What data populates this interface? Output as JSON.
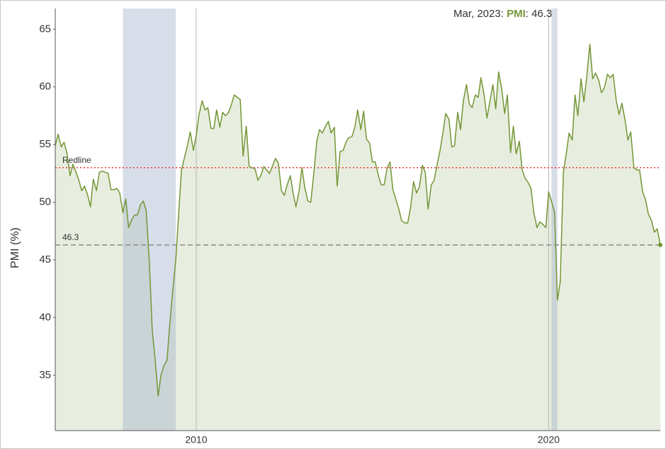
{
  "chart_data": {
    "type": "area-line",
    "axis_label_y": "PMI (%)",
    "xlim": [
      2006,
      2023.17
    ],
    "xticks": [
      2010,
      2020
    ],
    "ylim": [
      30.2,
      66.8
    ],
    "yticks": [
      35,
      40,
      45,
      50,
      55,
      60,
      65
    ],
    "grid": true,
    "bands": [
      {
        "from": 2007.92,
        "to": 2009.42
      },
      {
        "from": 2020.08,
        "to": 2020.25
      }
    ],
    "redline": {
      "label": "Redline",
      "value": 53,
      "color": "#e53935"
    },
    "reference": {
      "value": 46.3,
      "color": "#8a8f86"
    },
    "tooltip": {
      "date": "Mar, 2023",
      "series": "PMI",
      "value": 46.3
    },
    "x": [
      2006.0,
      2006.08,
      2006.17,
      2006.25,
      2006.33,
      2006.42,
      2006.5,
      2006.58,
      2006.67,
      2006.75,
      2006.83,
      2006.92,
      2007.0,
      2007.08,
      2007.17,
      2007.25,
      2007.33,
      2007.42,
      2007.5,
      2007.58,
      2007.67,
      2007.75,
      2007.83,
      2007.92,
      2008.0,
      2008.08,
      2008.17,
      2008.25,
      2008.33,
      2008.42,
      2008.5,
      2008.58,
      2008.67,
      2008.75,
      2008.83,
      2008.92,
      2009.0,
      2009.08,
      2009.17,
      2009.25,
      2009.33,
      2009.42,
      2009.5,
      2009.58,
      2009.67,
      2009.75,
      2009.83,
      2009.92,
      2010.0,
      2010.08,
      2010.17,
      2010.25,
      2010.33,
      2010.42,
      2010.5,
      2010.58,
      2010.67,
      2010.75,
      2010.83,
      2010.92,
      2011.0,
      2011.08,
      2011.17,
      2011.25,
      2011.33,
      2011.42,
      2011.5,
      2011.58,
      2011.67,
      2011.75,
      2011.83,
      2011.92,
      2012.0,
      2012.08,
      2012.17,
      2012.25,
      2012.33,
      2012.42,
      2012.5,
      2012.58,
      2012.67,
      2012.75,
      2012.83,
      2012.92,
      2013.0,
      2013.08,
      2013.17,
      2013.25,
      2013.33,
      2013.42,
      2013.5,
      2013.58,
      2013.67,
      2013.75,
      2013.83,
      2013.92,
      2014.0,
      2014.08,
      2014.17,
      2014.25,
      2014.33,
      2014.42,
      2014.5,
      2014.58,
      2014.67,
      2014.75,
      2014.83,
      2014.92,
      2015.0,
      2015.08,
      2015.17,
      2015.25,
      2015.33,
      2015.42,
      2015.5,
      2015.58,
      2015.67,
      2015.75,
      2015.83,
      2015.92,
      2016.0,
      2016.08,
      2016.17,
      2016.25,
      2016.33,
      2016.42,
      2016.5,
      2016.58,
      2016.67,
      2016.75,
      2016.83,
      2016.92,
      2017.0,
      2017.08,
      2017.17,
      2017.25,
      2017.33,
      2017.42,
      2017.5,
      2017.58,
      2017.67,
      2017.75,
      2017.83,
      2017.92,
      2018.0,
      2018.08,
      2018.17,
      2018.25,
      2018.33,
      2018.42,
      2018.5,
      2018.58,
      2018.67,
      2018.75,
      2018.83,
      2018.92,
      2019.0,
      2019.08,
      2019.17,
      2019.25,
      2019.33,
      2019.42,
      2019.5,
      2019.58,
      2019.67,
      2019.75,
      2019.83,
      2019.92,
      2020.0,
      2020.08,
      2020.17,
      2020.25,
      2020.33,
      2020.42,
      2020.5,
      2020.58,
      2020.67,
      2020.75,
      2020.83,
      2020.92,
      2021.0,
      2021.08,
      2021.17,
      2021.25,
      2021.33,
      2021.42,
      2021.5,
      2021.58,
      2021.67,
      2021.75,
      2021.83,
      2021.92,
      2022.0,
      2022.08,
      2022.17,
      2022.25,
      2022.33,
      2022.42,
      2022.5,
      2022.58,
      2022.67,
      2022.75,
      2022.83,
      2022.92,
      2023.0,
      2023.08,
      2023.17
    ],
    "series": [
      {
        "name": "PMI",
        "color": "#739636",
        "values": [
          54.9,
          55.9,
          54.8,
          55.2,
          54.3,
          52.3,
          53.3,
          52.7,
          51.9,
          51.0,
          51.4,
          50.6,
          49.6,
          52.0,
          51.0,
          52.6,
          52.7,
          52.6,
          52.5,
          51.1,
          51.1,
          51.2,
          50.8,
          49.1,
          50.3,
          47.8,
          48.5,
          48.9,
          48.9,
          49.8,
          50.1,
          49.3,
          44.8,
          39.0,
          36.5,
          33.2,
          35.0,
          35.8,
          36.3,
          39.4,
          42.2,
          45.0,
          48.9,
          52.8,
          53.9,
          54.9,
          56.1,
          54.5,
          55.8,
          57.6,
          58.8,
          58.0,
          58.2,
          56.4,
          56.4,
          58.0,
          56.5,
          57.8,
          57.5,
          57.8,
          58.5,
          59.3,
          59.1,
          58.9,
          54.0,
          56.6,
          53.1,
          53.0,
          52.9,
          51.9,
          52.3,
          53.1,
          52.8,
          52.5,
          53.2,
          53.8,
          53.4,
          51.0,
          50.6,
          51.5,
          52.3,
          50.8,
          49.6,
          51.0,
          53.0,
          51.3,
          50.1,
          50.0,
          52.3,
          55.3,
          56.3,
          56.0,
          56.6,
          57.0,
          56.0,
          56.5,
          51.4,
          54.4,
          54.5,
          55.2,
          55.6,
          55.7,
          56.5,
          58.0,
          56.3,
          57.9,
          55.5,
          55.1,
          53.5,
          53.5,
          52.3,
          51.5,
          51.5,
          53.0,
          53.5,
          51.1,
          50.2,
          49.4,
          48.4,
          48.2,
          48.2,
          49.5,
          51.8,
          50.8,
          51.3,
          53.2,
          52.6,
          49.4,
          51.5,
          51.9,
          53.2,
          54.5,
          56.0,
          57.7,
          57.2,
          54.8,
          54.9,
          57.8,
          56.3,
          58.8,
          60.2,
          58.5,
          58.2,
          59.3,
          59.1,
          60.8,
          59.3,
          57.3,
          58.7,
          60.2,
          58.1,
          61.3,
          59.8,
          57.7,
          59.3,
          54.3,
          56.6,
          54.2,
          55.3,
          52.8,
          52.1,
          51.7,
          51.2,
          49.1,
          47.8,
          48.3,
          48.1,
          47.8,
          50.9,
          50.1,
          49.1,
          41.5,
          43.1,
          52.6,
          54.2,
          56.0,
          55.4,
          59.3,
          57.5,
          60.7,
          58.7,
          60.8,
          63.7,
          60.7,
          61.2,
          60.6,
          59.5,
          59.9,
          61.1,
          60.8,
          61.1,
          58.8,
          57.6,
          58.6,
          57.1,
          55.4,
          56.1,
          53.0,
          52.8,
          52.8,
          50.9,
          50.2,
          49.0,
          48.4,
          47.4,
          47.7,
          46.3
        ]
      }
    ]
  }
}
